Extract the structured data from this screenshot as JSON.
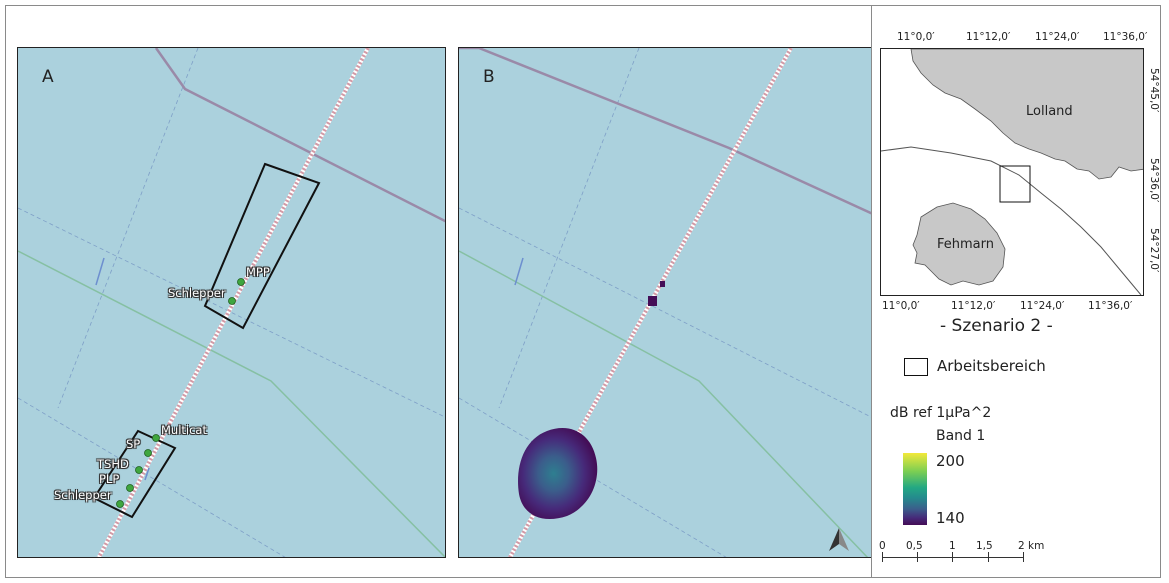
{
  "panels": {
    "a": {
      "letter": "A",
      "labels": [
        "MPP",
        "Schlepper",
        "Multicat",
        "SP",
        "TSHD",
        "PLP",
        "Schlepper"
      ]
    },
    "b": {
      "letter": "B"
    }
  },
  "overview": {
    "top_ticks": [
      "11°0,0′",
      "11°12,0′",
      "11°24,0′",
      "11°36,0′"
    ],
    "bottom_ticks": [
      "11°0,0′",
      "11°12,0′",
      "11°24,0′",
      "11°36,0′"
    ],
    "right_ticks": [
      "54°45,0′",
      "54°36,0′",
      "54°27,0′"
    ],
    "places": [
      "Lolland",
      "Fehmarn"
    ]
  },
  "scenario_title": "- Szenario 2 -",
  "legend": {
    "work_area": "Arbeitsbereich",
    "unit": "dB ref 1µPa^2",
    "band": "Band 1",
    "max": "200",
    "min": "140",
    "colors": [
      "#f2e93a",
      "#23a883",
      "#3b5d8b",
      "#440d56"
    ]
  },
  "scalebar": {
    "labels": [
      "0",
      "0,5",
      "1",
      "1,5",
      "2 km"
    ]
  },
  "colors": {
    "water": "#abd1dd",
    "land": "#c8c8c8",
    "vessel": "#3fa63f",
    "pipeline": "#c7a8b0",
    "border": "#9a8aa8"
  }
}
